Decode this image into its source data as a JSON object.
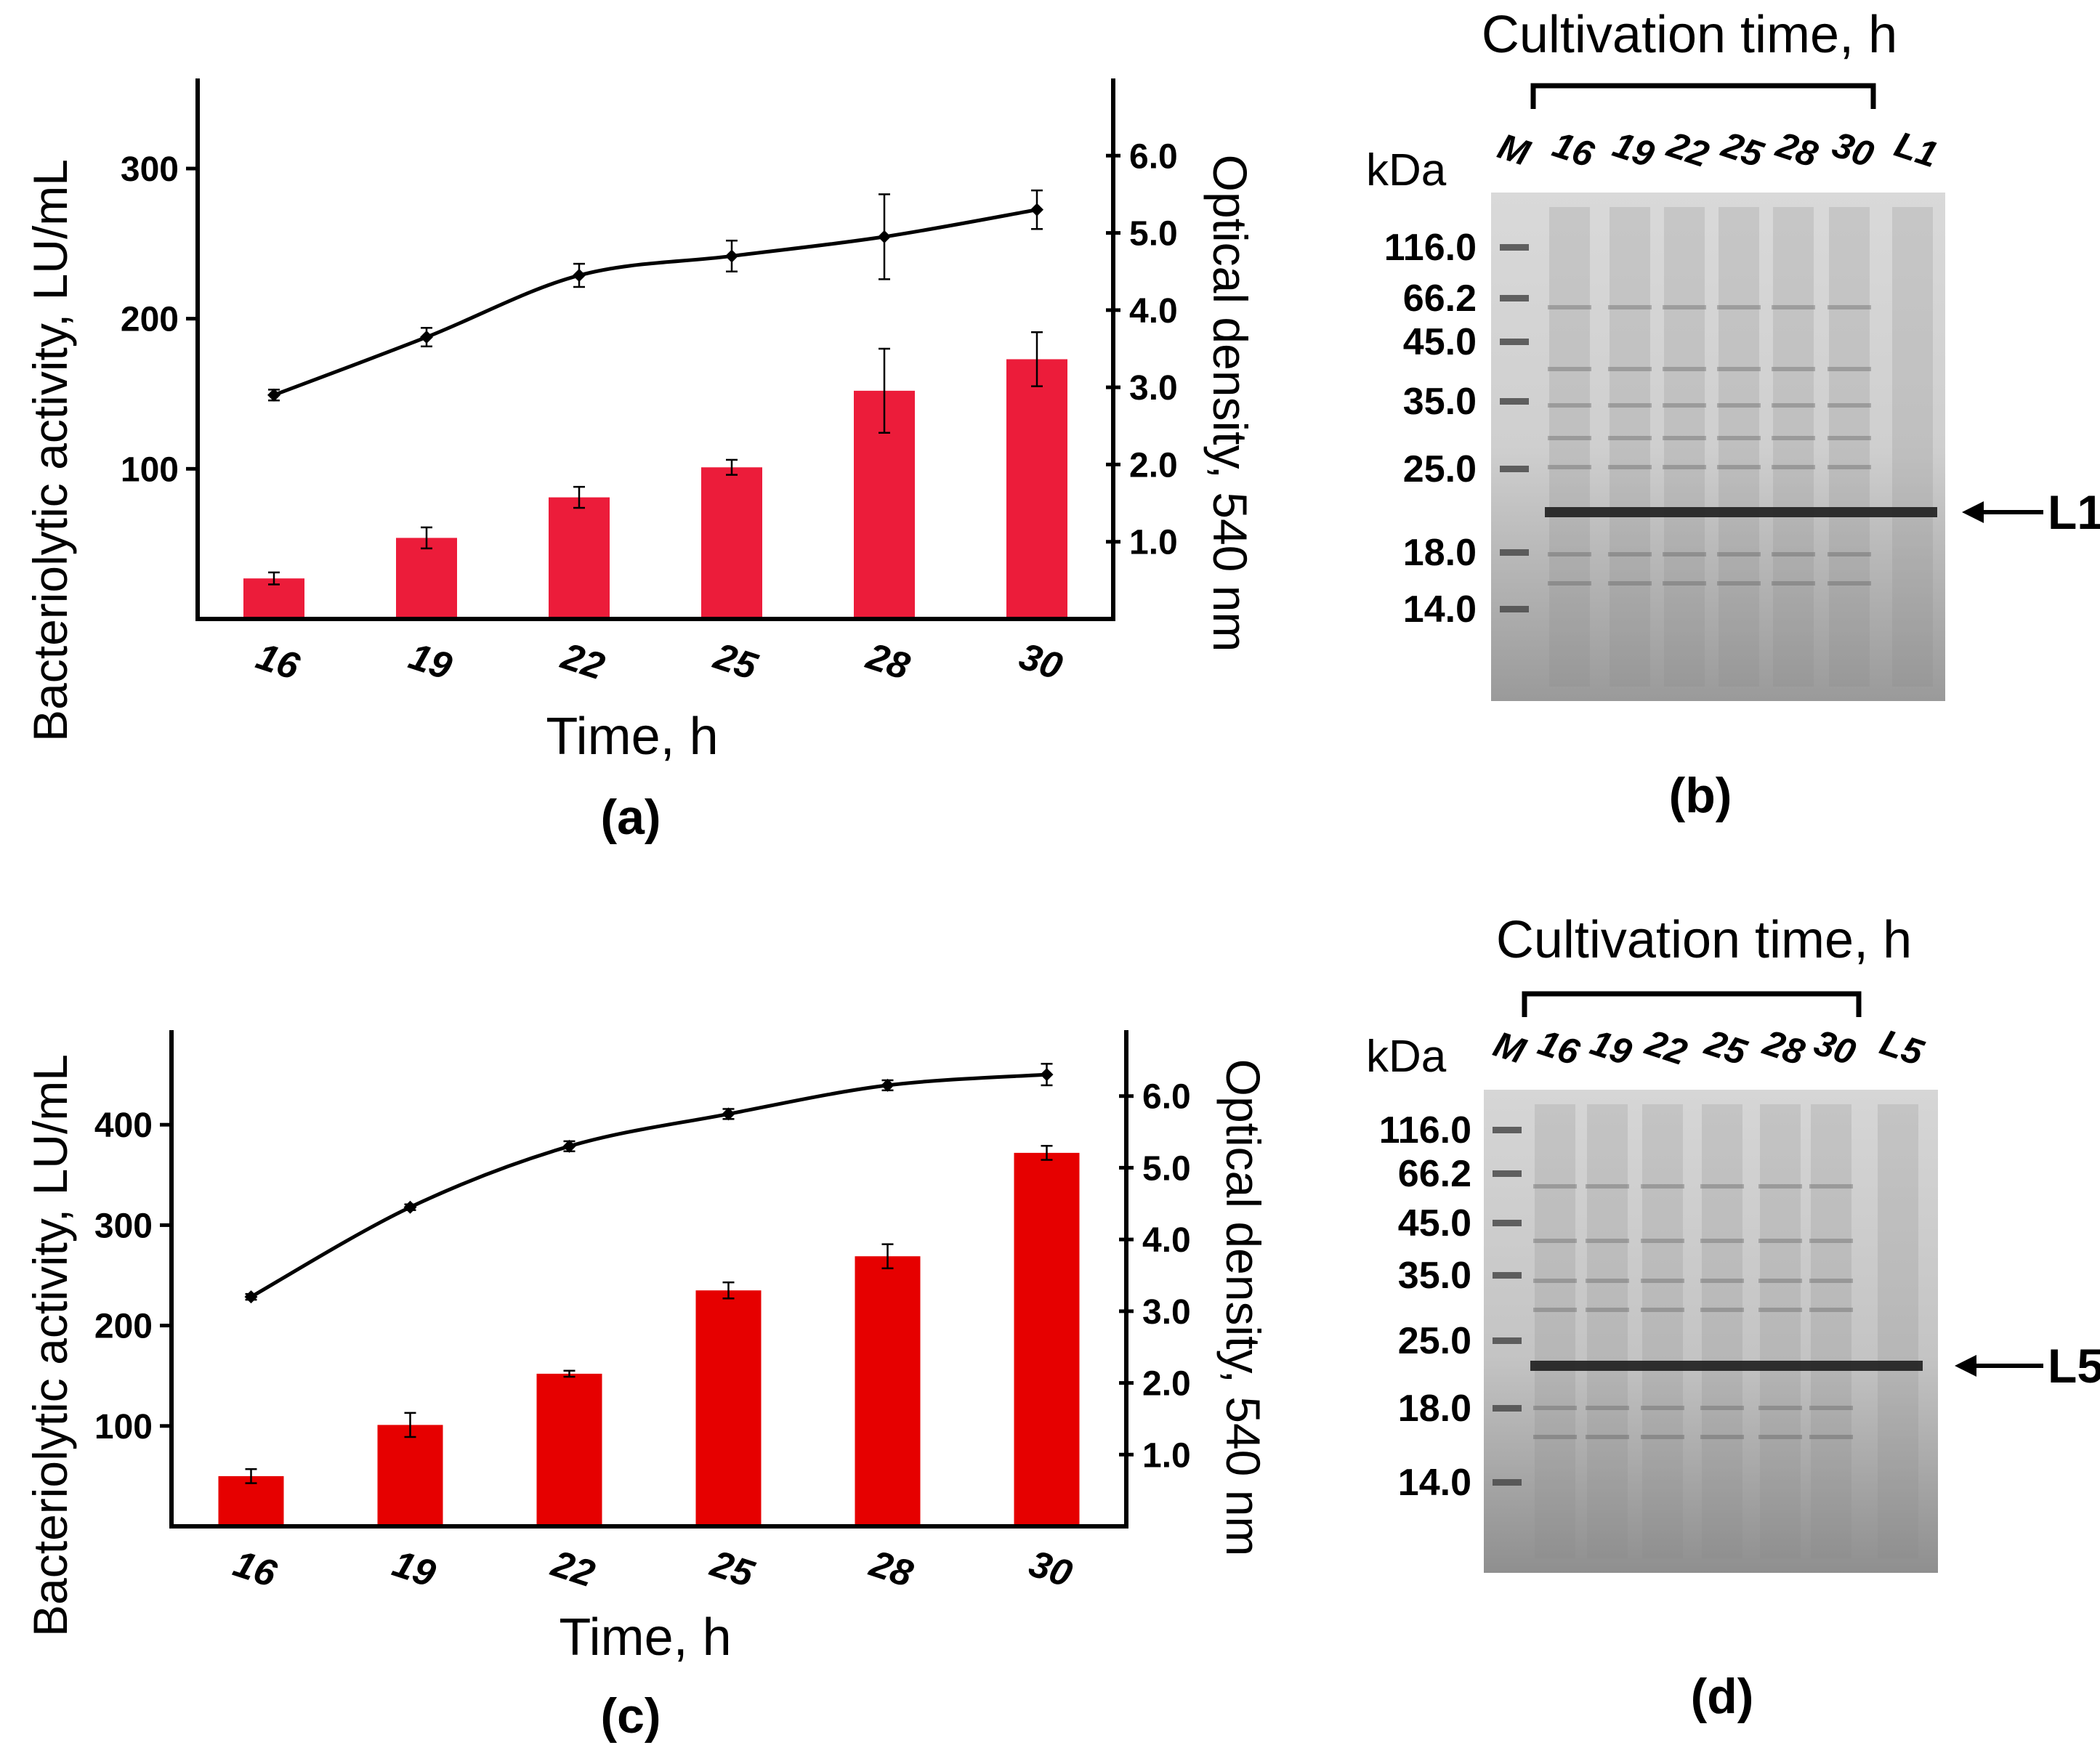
{
  "colors": {
    "bar_a": "#ec1c3a",
    "bar_c": "#e60000",
    "line": "#000000",
    "axis": "#000000"
  },
  "chart_data": [
    {
      "panel": "(a)",
      "type": "bar",
      "xlabel": "Time, h",
      "ylabel": "Bacteriolytic activity, LU/mL",
      "y2label": "Optical density, 540 nm",
      "categories": [
        "16",
        "19",
        "22",
        "25",
        "28",
        "30"
      ],
      "ylim": [
        0,
        360
      ],
      "yticks": [
        "100",
        "200",
        "300"
      ],
      "y2lim": [
        0,
        7.0
      ],
      "y2ticks": [
        "1.0",
        "2.0",
        "3.0",
        "4.0",
        "5.0",
        "6.0"
      ],
      "series": [
        {
          "kind": "bar",
          "axis": "left",
          "values": [
            27,
            54,
            81,
            101,
            152,
            173
          ],
          "errors": [
            4,
            7,
            7,
            5,
            28,
            18
          ]
        },
        {
          "kind": "line",
          "axis": "right",
          "values": [
            2.9,
            3.65,
            4.45,
            4.7,
            4.95,
            5.3
          ],
          "errors": [
            0.07,
            0.12,
            0.15,
            0.2,
            0.55,
            0.25
          ]
        }
      ]
    },
    {
      "panel": "(c)",
      "type": "bar",
      "xlabel": "Time, h",
      "ylabel": "Bacteriolytic activity, LU/mL",
      "y2label": "Optical density, 540 nm",
      "categories": [
        "16",
        "19",
        "22",
        "25",
        "28",
        "30"
      ],
      "ylim": [
        0,
        500
      ],
      "yticks": [
        "100",
        "200",
        "300",
        "400"
      ],
      "y2lim": [
        0,
        7.0
      ],
      "y2ticks": [
        "1.0",
        "2.0",
        "3.0",
        "4.0",
        "5.0",
        "6.0"
      ],
      "series": [
        {
          "kind": "bar",
          "axis": "left",
          "values": [
            50,
            101,
            152,
            235,
            269,
            372
          ],
          "errors": [
            7,
            12,
            3,
            8,
            12,
            7
          ]
        },
        {
          "kind": "line",
          "axis": "right",
          "values": [
            3.2,
            4.45,
            5.3,
            5.75,
            6.15,
            6.3
          ],
          "errors": [
            0.04,
            0.04,
            0.07,
            0.07,
            0.07,
            0.15
          ]
        }
      ]
    }
  ],
  "gels": [
    {
      "panel": "(b)",
      "header": "Cultivation time, h",
      "unit": "kDa",
      "lanes": [
        "M",
        "16",
        "19",
        "22",
        "25",
        "28",
        "30",
        "L1"
      ],
      "markers": [
        "116.0",
        "66.2",
        "45.0",
        "35.0",
        "25.0",
        "18.0",
        "14.0"
      ],
      "band_label": "L1"
    },
    {
      "panel": "(d)",
      "header": "Cultivation time, h",
      "unit": "kDa",
      "lanes": [
        "M",
        "16",
        "19",
        "22",
        "25",
        "28",
        "30",
        "L5"
      ],
      "markers": [
        "116.0",
        "66.2",
        "45.0",
        "35.0",
        "25.0",
        "18.0",
        "14.0"
      ],
      "band_label": "L5"
    }
  ]
}
